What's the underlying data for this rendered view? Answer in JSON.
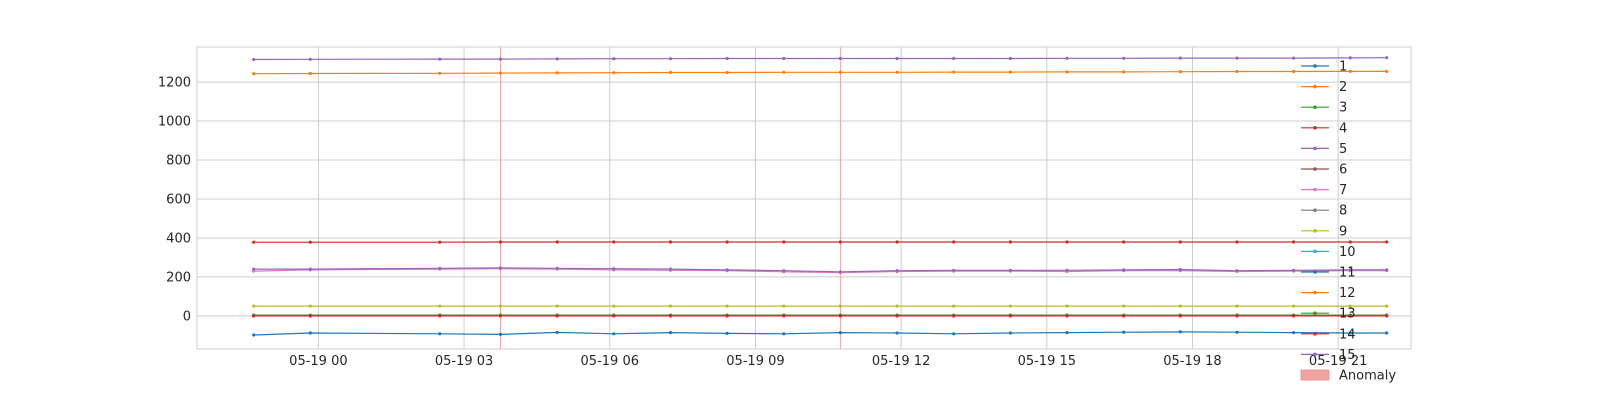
{
  "chart_data": {
    "type": "line",
    "title": "",
    "xlabel": "",
    "ylabel": "",
    "grid": true,
    "legend_position": "right",
    "x_range": [
      "2024-05-18 21:30",
      "2024-05-19 22:30"
    ],
    "ylim": [
      -170,
      1380
    ],
    "x_ticks": [
      {
        "t": "2024-05-19 00:00",
        "label": "05-19 00"
      },
      {
        "t": "2024-05-19 03:00",
        "label": "05-19 03"
      },
      {
        "t": "2024-05-19 06:00",
        "label": "05-19 06"
      },
      {
        "t": "2024-05-19 09:00",
        "label": "05-19 09"
      },
      {
        "t": "2024-05-19 12:00",
        "label": "05-19 12"
      },
      {
        "t": "2024-05-19 15:00",
        "label": "05-19 15"
      },
      {
        "t": "2024-05-19 18:00",
        "label": "05-19 18"
      },
      {
        "t": "2024-05-19 21:00",
        "label": "05-19 21"
      }
    ],
    "y_ticks": [
      0,
      200,
      400,
      600,
      800,
      1000,
      1200
    ],
    "x": [
      "2024-05-18 22:40",
      "2024-05-18 23:50",
      "2024-05-19 02:30",
      "2024-05-19 03:45",
      "2024-05-19 04:55",
      "2024-05-19 06:05",
      "2024-05-19 07:15",
      "2024-05-19 08:25",
      "2024-05-19 09:35",
      "2024-05-19 10:45",
      "2024-05-19 11:55",
      "2024-05-19 13:05",
      "2024-05-19 14:15",
      "2024-05-19 15:25",
      "2024-05-19 16:35",
      "2024-05-19 17:45",
      "2024-05-19 18:55",
      "2024-05-19 20:05",
      "2024-05-19 21:15",
      "2024-05-19 22:00"
    ],
    "series": [
      {
        "name": "1",
        "color": "#1f77b4",
        "values": [
          -98,
          -88,
          -92,
          -95,
          -85,
          -92,
          -86,
          -90,
          -92,
          -86,
          -88,
          -92,
          -88,
          -86,
          -84,
          -82,
          -84,
          -86,
          -88,
          -88
        ]
      },
      {
        "name": "2",
        "color": "#ff7f0e",
        "values": [
          1243,
          1244,
          1245,
          1246,
          1247,
          1248,
          1249,
          1249,
          1250,
          1250,
          1250,
          1251,
          1251,
          1252,
          1252,
          1253,
          1254,
          1254,
          1255,
          1255
        ]
      },
      {
        "name": "3",
        "color": "#2ca02c",
        "values": [
          4,
          4,
          4,
          4,
          4,
          4,
          4,
          4,
          4,
          4,
          4,
          4,
          4,
          4,
          4,
          4,
          4,
          4,
          4,
          4
        ]
      },
      {
        "name": "4",
        "color": "#d62728",
        "values": [
          378,
          378,
          378,
          379,
          379,
          379,
          379,
          379,
          379,
          379,
          379,
          379,
          379,
          379,
          379,
          379,
          379,
          379,
          379,
          379
        ]
      },
      {
        "name": "5",
        "color": "#9467bd",
        "values": [
          1316,
          1317,
          1318,
          1318,
          1319,
          1320,
          1320,
          1321,
          1321,
          1321,
          1321,
          1321,
          1321,
          1322,
          1322,
          1323,
          1323,
          1323,
          1324,
          1325
        ]
      },
      {
        "name": "6",
        "color": "#8c564b",
        "values": [
          2,
          2,
          2,
          2,
          2,
          2,
          2,
          2,
          2,
          2,
          2,
          2,
          2,
          2,
          2,
          2,
          2,
          2,
          2,
          2
        ]
      },
      {
        "name": "7",
        "color": "#e377c2",
        "values": [
          230,
          236,
          240,
          242,
          240,
          236,
          234,
          232,
          226,
          222,
          228,
          230,
          230,
          228,
          232,
          232,
          228,
          230,
          232,
          232
        ]
      },
      {
        "name": "8",
        "color": "#7f7f7f",
        "values": [
          3,
          3,
          3,
          3,
          3,
          3,
          3,
          3,
          3,
          3,
          3,
          3,
          3,
          3,
          3,
          3,
          3,
          3,
          3,
          3
        ]
      },
      {
        "name": "9",
        "color": "#bcbd22",
        "values": [
          50,
          50,
          50,
          50,
          50,
          50,
          50,
          50,
          50,
          50,
          50,
          50,
          50,
          50,
          50,
          50,
          50,
          50,
          50,
          50
        ]
      },
      {
        "name": "10",
        "color": "#17becf",
        "values": [
          1,
          1,
          1,
          1,
          1,
          1,
          1,
          1,
          1,
          1,
          1,
          1,
          1,
          1,
          1,
          1,
          1,
          1,
          1,
          1
        ]
      },
      {
        "name": "11",
        "color": "#1f77b4",
        "values": [
          0,
          0,
          0,
          0,
          0,
          0,
          0,
          0,
          0,
          0,
          0,
          0,
          0,
          0,
          0,
          0,
          0,
          0,
          0,
          0
        ]
      },
      {
        "name": "12",
        "color": "#ff7f0e",
        "values": [
          1,
          1,
          1,
          1,
          1,
          1,
          1,
          1,
          1,
          1,
          1,
          1,
          1,
          1,
          1,
          1,
          1,
          1,
          1,
          1
        ]
      },
      {
        "name": "13",
        "color": "#2ca02c",
        "values": [
          2,
          2,
          2,
          2,
          2,
          2,
          2,
          2,
          2,
          2,
          2,
          2,
          2,
          2,
          2,
          2,
          2,
          2,
          2,
          2
        ]
      },
      {
        "name": "14",
        "color": "#d62728",
        "values": [
          0,
          0,
          0,
          0,
          0,
          0,
          0,
          0,
          0,
          0,
          0,
          0,
          0,
          0,
          0,
          0,
          0,
          0,
          0,
          0
        ]
      },
      {
        "name": "15",
        "color": "#9467bd",
        "values": [
          240,
          240,
          244,
          246,
          244,
          242,
          240,
          236,
          232,
          226,
          232,
          234,
          234,
          234,
          236,
          238,
          232,
          234,
          236,
          236
        ]
      }
    ],
    "anomalies": [
      "2024-05-19 03:45",
      "2024-05-19 10:45"
    ],
    "anomaly_label": "Anomaly",
    "anomaly_color": "#f4a3a3"
  }
}
